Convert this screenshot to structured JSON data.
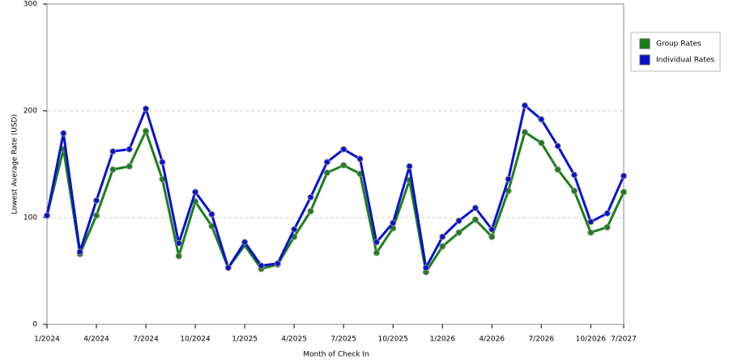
{
  "chart_data": {
    "type": "line",
    "x_label": "Month of Check In",
    "y_label": "Lowest Average Rate (USD)",
    "categories": [
      "1/2024",
      null,
      null,
      "4/2024",
      null,
      null,
      "7/2024",
      null,
      null,
      "10/2024",
      null,
      null,
      "1/2025",
      null,
      null,
      "4/2025",
      null,
      null,
      "7/2025",
      null,
      null,
      "10/2025",
      null,
      null,
      "1/2026",
      null,
      null,
      "4/2026",
      null,
      null,
      "7/2026",
      null,
      null,
      "10/2026",
      null,
      "7/2027"
    ],
    "series": [
      {
        "name": "Group Rates",
        "color": "#1a7f1a",
        "values": [
          102,
          164,
          66,
          102,
          145,
          148,
          181,
          136,
          64,
          115,
          92,
          53,
          74,
          52,
          56,
          82,
          106,
          142,
          149,
          141,
          67,
          90,
          135,
          49,
          73,
          86,
          98,
          82,
          125,
          180,
          170,
          145,
          125,
          86,
          91,
          124
        ]
      },
      {
        "name": "Individual Rates",
        "color": "#0a10d0",
        "values": [
          102,
          179,
          68,
          116,
          162,
          164,
          202,
          152,
          76,
          124,
          103,
          53,
          77,
          55,
          57,
          89,
          119,
          152,
          164,
          155,
          77,
          95,
          148,
          53,
          82,
          97,
          109,
          89,
          136,
          205,
          192,
          167,
          140,
          96,
          104,
          139
        ]
      }
    ],
    "ylim": [
      0,
      300
    ],
    "yticks": [
      0,
      100,
      200,
      300
    ],
    "grid": true,
    "legend": "right"
  }
}
